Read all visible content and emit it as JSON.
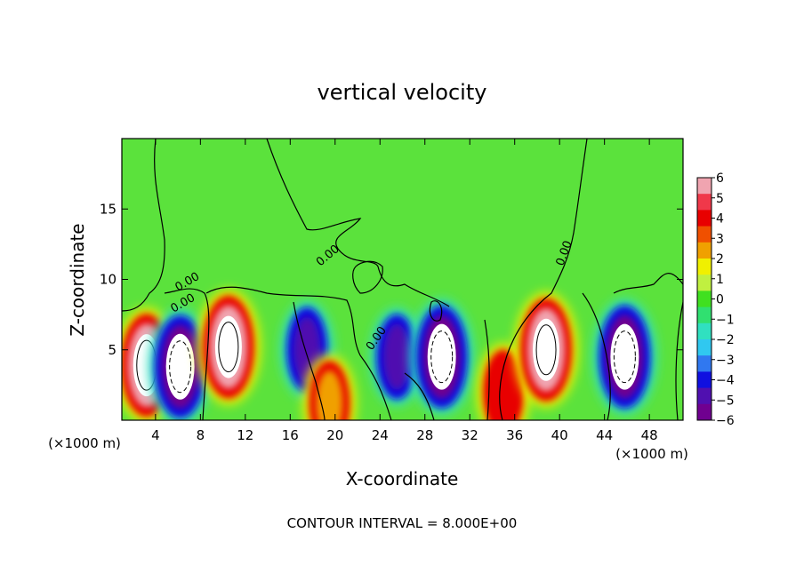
{
  "chart_data": {
    "type": "heatmap",
    "title": "vertical velocity",
    "xlabel": "X-coordinate",
    "ylabel": "Z-coordinate",
    "x_unit_label": "(×1000 m)",
    "y_unit_label": "(×1000 m)",
    "xlim": [
      0,
      50
    ],
    "ylim": [
      0,
      20
    ],
    "x_ticks": [
      4,
      8,
      12,
      16,
      20,
      24,
      28,
      32,
      36,
      40,
      44,
      48
    ],
    "x_tick_labels": [
      "4",
      "8",
      "12",
      "16",
      "20",
      "24",
      "28",
      "32",
      "36",
      "40",
      "44",
      "48"
    ],
    "y_ticks": [
      5,
      10,
      15
    ],
    "y_tick_labels": [
      "5",
      "10",
      "15"
    ],
    "footer": "CONTOUR INTERVAL = 8.000E+00",
    "contour_label": "0.00",
    "colorbar": {
      "min": -6,
      "max": 6,
      "ticks": [
        "6",
        "5",
        "4",
        "3",
        "2",
        "1",
        "0",
        "−1",
        "−2",
        "−3",
        "−4",
        "−5",
        "−6"
      ],
      "colors": [
        "#f0a4b0",
        "#f0384a",
        "#e80000",
        "#f05000",
        "#f0a000",
        "#f0f000",
        "#c0f040",
        "#40e020",
        "#30e070",
        "#30e0c0",
        "#30c8f0",
        "#3078f0",
        "#1010e0",
        "#5010b0",
        "#700090"
      ]
    },
    "features": [
      {
        "kind": "updraft",
        "x": 3.2,
        "z": 3.9,
        "peak": 6
      },
      {
        "kind": "downdraft",
        "x": 6.2,
        "z": 3.8,
        "peak": -6
      },
      {
        "kind": "updraft",
        "x": 10.5,
        "z": 5.2,
        "peak": 6
      },
      {
        "kind": "downdraft",
        "x": 17.5,
        "z": 5.0,
        "peak": -5
      },
      {
        "kind": "updraft",
        "x": 19.5,
        "z": 1.2,
        "peak": 3
      },
      {
        "kind": "downdraft",
        "x": 25.5,
        "z": 4.5,
        "peak": -5
      },
      {
        "kind": "downdraft",
        "x": 29.5,
        "z": 4.5,
        "peak": -6
      },
      {
        "kind": "updraft",
        "x": 35.0,
        "z": 2.0,
        "peak": 4
      },
      {
        "kind": "updraft",
        "x": 38.8,
        "z": 5.0,
        "peak": 6
      },
      {
        "kind": "downdraft",
        "x": 45.8,
        "z": 4.5,
        "peak": -6
      }
    ]
  }
}
